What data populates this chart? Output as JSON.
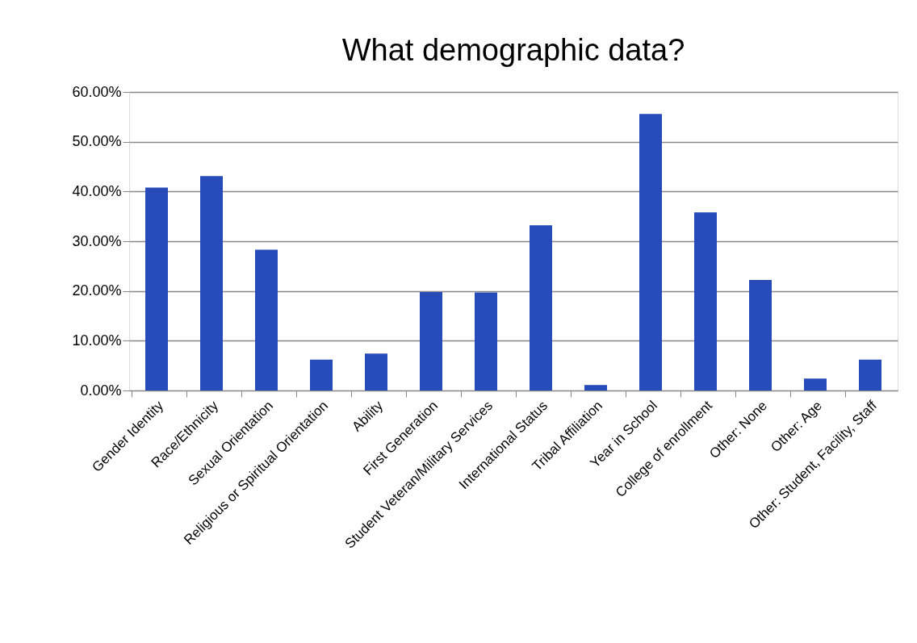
{
  "chart_data": {
    "type": "bar",
    "title": "What demographic data?",
    "categories": [
      "Gender Identity",
      "Race/Ethnicity",
      "Sexual Orientation",
      "Religious or Spiritual Orientation",
      "Ability",
      "First Generation",
      "Student Veteran/Military Services",
      "International Status",
      "Tribal Affiliation",
      "Year in School",
      "College of enrollment",
      "Other: None",
      "Other: Age",
      "Other: Student, Facility, Staff"
    ],
    "values": [
      40.8,
      43.1,
      28.3,
      6.2,
      7.4,
      19.8,
      19.7,
      33.2,
      1.1,
      55.6,
      35.8,
      22.2,
      2.4,
      6.2
    ],
    "color": "#274bb8",
    "ylim": [
      0,
      60
    ],
    "yticks": [
      {
        "value": 0,
        "label": "0.00%"
      },
      {
        "value": 10,
        "label": "10.00%"
      },
      {
        "value": 20,
        "label": "20.00%"
      },
      {
        "value": 30,
        "label": "30.00%"
      },
      {
        "value": 40,
        "label": "40.00%"
      },
      {
        "value": 50,
        "label": "50.00%"
      },
      {
        "value": 60,
        "label": "60.00%"
      }
    ],
    "grid": "y"
  }
}
